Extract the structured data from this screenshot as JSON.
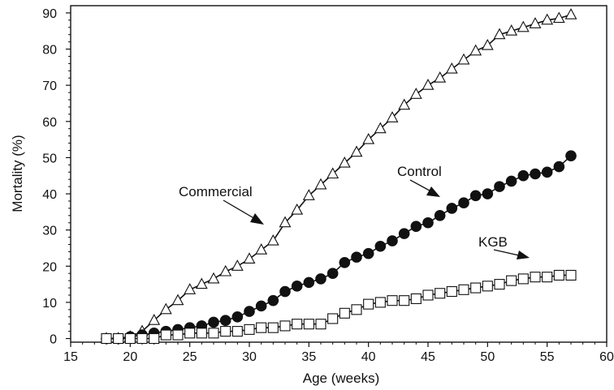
{
  "chart_data": {
    "type": "line",
    "xlabel": "Age (weeks)",
    "ylabel": "Mortality (%)",
    "xlim": [
      15,
      60
    ],
    "ylim": [
      -1,
      92
    ],
    "xticks": [
      "15",
      "20",
      "25",
      "30",
      "35",
      "40",
      "45",
      "50",
      "55",
      "60"
    ],
    "yticks": [
      "0",
      "10",
      "20",
      "30",
      "40",
      "50",
      "60",
      "70",
      "80",
      "90"
    ],
    "grid": false,
    "legend": "none",
    "annotations": [
      "Commercial",
      "Control",
      "KGB"
    ],
    "x": [
      18,
      19,
      20,
      21,
      22,
      23,
      24,
      25,
      26,
      27,
      28,
      29,
      30,
      31,
      32,
      33,
      34,
      35,
      36,
      37,
      38,
      39,
      40,
      41,
      42,
      43,
      44,
      45,
      46,
      47,
      48,
      49,
      50,
      51,
      52,
      53,
      54,
      55,
      56,
      57
    ],
    "series": [
      {
        "name": "Commercial",
        "marker": "triangle-open",
        "values": [
          0,
          0,
          0.5,
          2,
          5,
          8,
          10.5,
          13.5,
          15,
          16.5,
          18.5,
          20,
          22,
          24.5,
          27,
          32,
          35.5,
          39.5,
          42.5,
          45.5,
          48.5,
          51.5,
          55,
          58,
          61,
          64.5,
          67.5,
          70,
          72,
          74.5,
          77,
          79.5,
          81,
          84,
          85,
          86,
          87,
          88,
          88.5,
          89.5
        ]
      },
      {
        "name": "Control",
        "marker": "circle-filled",
        "values": [
          0,
          0,
          0.5,
          1,
          1.5,
          2,
          2.5,
          3,
          3.5,
          4.5,
          5,
          6,
          7.5,
          9,
          10.5,
          13,
          14.5,
          15.5,
          16.5,
          18,
          21,
          22.5,
          23.5,
          25.5,
          27,
          29,
          31,
          32,
          34,
          36,
          37.5,
          39.5,
          40,
          42,
          43.5,
          45,
          45.5,
          46,
          47.5,
          50.5
        ]
      },
      {
        "name": "KGB",
        "marker": "square-open",
        "values": [
          0,
          0,
          0,
          0,
          0,
          1,
          1,
          1.5,
          1.5,
          1.5,
          2,
          2,
          2.5,
          3,
          3,
          3.5,
          4,
          4,
          4,
          5.5,
          7,
          8,
          9.5,
          10,
          10.5,
          10.5,
          11,
          12,
          12.5,
          13,
          13.5,
          14,
          14.5,
          15,
          16,
          16.5,
          17,
          17,
          17.5,
          17.5
        ]
      }
    ]
  }
}
